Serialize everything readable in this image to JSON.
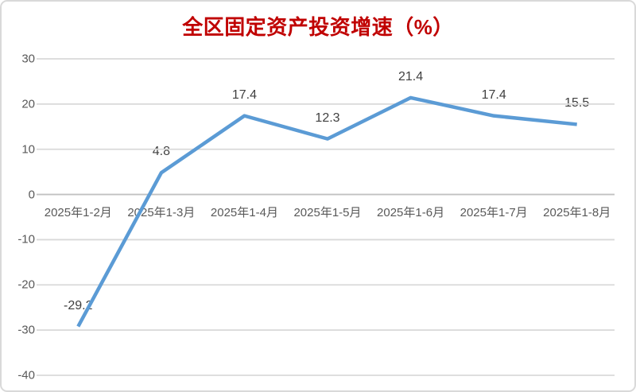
{
  "chart_data": {
    "type": "line",
    "title": "全区固定资产投资增速（%）",
    "categories": [
      "2025年1-2月",
      "2025年1-3月",
      "2025年1-4月",
      "2025年1-5月",
      "2025年1-6月",
      "2025年1-7月",
      "2025年1-8月"
    ],
    "series": [
      {
        "name": "全区固定资产投资增速",
        "values": [
          -29.2,
          4.8,
          17.4,
          12.3,
          21.4,
          17.4,
          15.5
        ],
        "data_labels": [
          "-29.2",
          "4.8",
          "17.4",
          "12.3",
          "21.4",
          "17.4",
          "15.5"
        ]
      }
    ],
    "xlabel": "",
    "ylabel": "",
    "ylim": [
      -40,
      30
    ],
    "yticks": [
      30,
      20,
      10,
      0,
      -10,
      -20,
      -30,
      -40
    ],
    "grid": true,
    "legend_position": "none",
    "data_label_position": "above",
    "colors": {
      "line": "#5B9BD5",
      "title": "#C00000",
      "data_label": "#404040",
      "axis_text": "#595959",
      "gridline": "#D9D9D9",
      "zero_line": "#C1C1C1",
      "frame_border": "#D9D9D9",
      "background": "#FFFFFF"
    }
  }
}
